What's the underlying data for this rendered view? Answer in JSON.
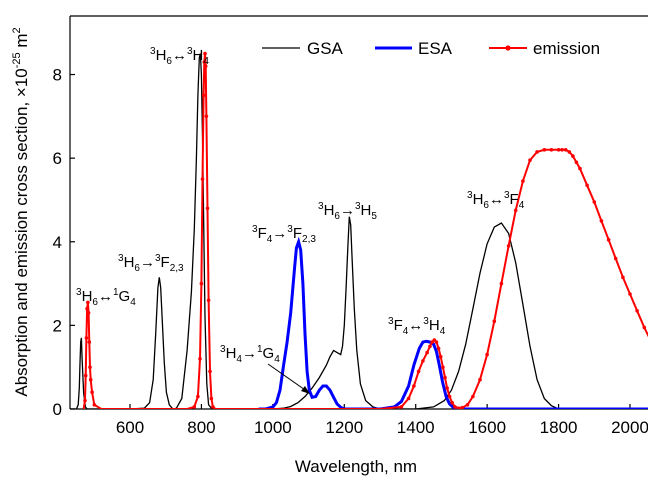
{
  "chart_data": {
    "type": "line",
    "xlabel": "Wavelength, nm",
    "ylabel": "Absorption and emission cross section, ×10",
    "ylabel_exp": "-25",
    "ylabel_unit": " m",
    "ylabel_unit_exp": "2",
    "xlim": [
      420,
      2080
    ],
    "ylim": [
      0,
      9.4
    ],
    "xticks": [
      600,
      800,
      1000,
      1200,
      1400,
      1600,
      1800,
      2000
    ],
    "yticks": [
      0,
      2,
      4,
      6,
      8
    ],
    "grid": false,
    "legend_position": "top-right",
    "colors": {
      "GSA": "#000000",
      "ESA": "#0000ff",
      "emission": "#ff0000"
    },
    "series": [
      {
        "name": "GSA",
        "x": [
          430,
          440,
          450,
          455,
          458,
          460,
          462,
          464,
          466,
          470,
          475,
          480,
          490,
          500,
          560,
          600,
          640,
          655,
          665,
          672,
          678,
          682,
          686,
          690,
          696,
          702,
          710,
          720,
          730,
          745,
          760,
          772,
          780,
          786,
          790,
          794,
          797,
          800,
          803,
          806,
          810,
          815,
          820,
          830,
          840,
          860,
          900,
          950,
          1000,
          1030,
          1050,
          1070,
          1090,
          1110,
          1130,
          1150,
          1160,
          1170,
          1180,
          1190,
          1195,
          1200,
          1205,
          1210,
          1214,
          1218,
          1222,
          1228,
          1235,
          1245,
          1260,
          1280,
          1300,
          1340,
          1400,
          1450,
          1480,
          1500,
          1520,
          1540,
          1560,
          1580,
          1600,
          1620,
          1640,
          1660,
          1680,
          1700,
          1720,
          1740,
          1760,
          1780,
          1800,
          2080
        ],
        "values": [
          0,
          0,
          0,
          0.1,
          0.5,
          1.1,
          1.6,
          1.7,
          1.2,
          0.4,
          0.05,
          0,
          0,
          0,
          0,
          0,
          0.02,
          0.15,
          0.7,
          1.8,
          2.9,
          3.15,
          2.9,
          2.2,
          1.1,
          0.4,
          0.1,
          0,
          0.02,
          0.25,
          1.4,
          2.8,
          4.3,
          6.0,
          7.5,
          8.4,
          8.5,
          8.0,
          6.5,
          4.6,
          2.2,
          0.6,
          0.1,
          0,
          0,
          0,
          0,
          0,
          0,
          0.02,
          0.06,
          0.15,
          0.3,
          0.5,
          0.75,
          1.05,
          1.25,
          1.4,
          1.35,
          1.3,
          1.5,
          2.0,
          2.9,
          3.9,
          4.6,
          4.4,
          3.6,
          2.4,
          1.4,
          0.6,
          0.2,
          0.05,
          0,
          0,
          0,
          0.05,
          0.2,
          0.45,
          0.9,
          1.55,
          2.4,
          3.25,
          3.95,
          4.35,
          4.45,
          4.2,
          3.5,
          2.5,
          1.5,
          0.7,
          0.25,
          0.08,
          0,
          0
        ]
      },
      {
        "name": "ESA",
        "x": [
          960,
          980,
          1000,
          1010,
          1020,
          1030,
          1040,
          1050,
          1060,
          1066,
          1072,
          1078,
          1084,
          1090,
          1096,
          1102,
          1110,
          1120,
          1130,
          1140,
          1150,
          1160,
          1170,
          1180,
          1190,
          1200,
          1300,
          1340,
          1360,
          1380,
          1395,
          1410,
          1420,
          1430,
          1440,
          1450,
          1458,
          1466,
          1475,
          1485,
          1495,
          1505,
          1515,
          1530,
          1545,
          2080
        ],
        "values": [
          0,
          0,
          0.05,
          0.15,
          0.45,
          1.05,
          1.6,
          2.3,
          3.3,
          3.85,
          4.0,
          3.8,
          3.0,
          1.8,
          0.9,
          0.45,
          0.28,
          0.3,
          0.45,
          0.55,
          0.55,
          0.45,
          0.28,
          0.12,
          0.04,
          0,
          0,
          0.05,
          0.18,
          0.55,
          1.05,
          1.45,
          1.6,
          1.62,
          1.6,
          1.55,
          1.38,
          1.05,
          0.65,
          0.3,
          0.12,
          0.04,
          0.01,
          0,
          0,
          0
        ]
      },
      {
        "name": "emission",
        "x": [
          470,
          474,
          476,
          478,
          480,
          482,
          484,
          486,
          488,
          490,
          494,
          500,
          520,
          600,
          700,
          760,
          780,
          790,
          796,
          800,
          803,
          806,
          808,
          810,
          812,
          814,
          817,
          820,
          824,
          828,
          832,
          840,
          850,
          870,
          1300,
          1360,
          1380,
          1395,
          1408,
          1420,
          1432,
          1440,
          1446,
          1452,
          1458,
          1464,
          1470,
          1476,
          1482,
          1488,
          1495,
          1502,
          1510,
          1520,
          1530,
          1545,
          1560,
          1580,
          1600,
          1620,
          1640,
          1660,
          1680,
          1700,
          1720,
          1740,
          1760,
          1780,
          1800,
          1810,
          1820,
          1830,
          1840,
          1850,
          1860,
          1880,
          1900,
          1920,
          1940,
          1960,
          1980,
          2000,
          2020,
          2040,
          2060,
          2080
        ],
        "values": [
          0,
          0.2,
          0.8,
          1.7,
          2.4,
          2.55,
          2.3,
          1.6,
          1.0,
          0.7,
          0.4,
          0.1,
          0,
          0,
          0,
          0,
          0.05,
          0.3,
          1.2,
          3.0,
          5.5,
          7.5,
          8.3,
          8.5,
          8.2,
          7.0,
          4.8,
          2.6,
          0.9,
          0.25,
          0.05,
          0,
          0,
          0,
          0,
          0.05,
          0.25,
          0.55,
          0.9,
          1.15,
          1.35,
          1.5,
          1.6,
          1.65,
          1.6,
          1.45,
          1.25,
          1.0,
          0.75,
          0.5,
          0.3,
          0.15,
          0.05,
          0.02,
          0.03,
          0.1,
          0.3,
          0.7,
          1.3,
          2.1,
          3.0,
          3.9,
          4.75,
          5.45,
          5.95,
          6.15,
          6.2,
          6.2,
          6.2,
          6.2,
          6.2,
          6.15,
          6.05,
          5.9,
          5.75,
          5.35,
          4.95,
          4.5,
          4.05,
          3.6,
          3.15,
          2.75,
          2.35,
          1.95,
          1.6,
          1.3
        ]
      }
    ],
    "annotations": [
      {
        "lead": "",
        "a": "3",
        "b": "H",
        "c": "6",
        "arrow": "↔",
        "d": "1",
        "e": "G",
        "f": "4"
      },
      {
        "lead": "",
        "a": "3",
        "b": "H",
        "c": "6",
        "arrow": "→",
        "d": "3",
        "e": "F",
        "f": "2,3"
      },
      {
        "lead": "",
        "a": "3",
        "b": "H",
        "c": "6",
        "arrow": "↔",
        "d": "3",
        "e": "H",
        "f": "4"
      },
      {
        "lead": "",
        "a": "3",
        "b": "F",
        "c": "4",
        "arrow": "→",
        "d": "3",
        "e": "F",
        "f": "2,3"
      },
      {
        "lead": "",
        "a": "3",
        "b": "H",
        "c": "6",
        "arrow": "→",
        "d": "3",
        "e": "H",
        "f": "5"
      },
      {
        "lead": "",
        "a": "3",
        "b": "H",
        "c": "4",
        "arrow": "→",
        "d": "1",
        "e": "G",
        "f": "4"
      },
      {
        "lead": "",
        "a": "3",
        "b": "F",
        "c": "4",
        "arrow": "↔",
        "d": "3",
        "e": "H",
        "f": "4"
      },
      {
        "lead": "",
        "a": "3",
        "b": "H",
        "c": "6",
        "arrow": "↔",
        "d": "3",
        "e": "F",
        "f": "4"
      }
    ]
  }
}
